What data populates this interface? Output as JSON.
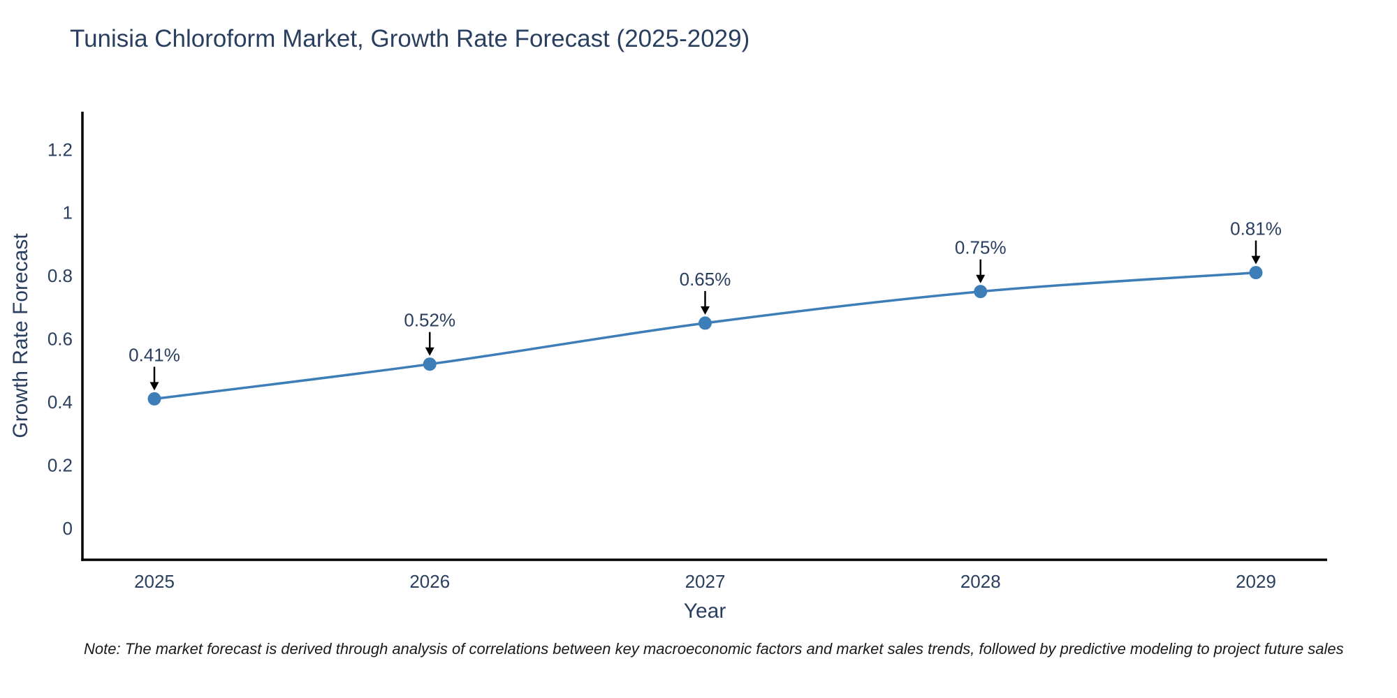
{
  "page": {
    "note": "Note: The market forecast is derived through analysis of correlations between key macroeconomic factors and market sales trends, followed by predictive modeling to project future sales",
    "colors": {
      "title_text": "#2a3f5f",
      "tick_text": "#2a3f5f",
      "annotation_text": "#2a3f5f",
      "axis_line": "#000000",
      "series": "#3d7db8",
      "arrow": "#000000",
      "note_text": "#1a1a1a",
      "background": "#ffffff"
    }
  },
  "chart_data": {
    "type": "line",
    "title": "Tunisia Chloroform Market, Growth Rate Forecast (2025-2029)",
    "xlabel": "Year",
    "ylabel": "Growth Rate Forecast",
    "categories": [
      "2025",
      "2026",
      "2027",
      "2028",
      "2029"
    ],
    "series": [
      {
        "name": "Growth Rate Forecast",
        "values": [
          0.41,
          0.52,
          0.65,
          0.75,
          0.81
        ],
        "point_labels": [
          "0.41%",
          "0.52%",
          "0.65%",
          "0.75%",
          "0.81%"
        ]
      }
    ],
    "yticks": [
      "0",
      "0.2",
      "0.4",
      "0.6",
      "0.8",
      "1",
      "1.2"
    ],
    "ytick_values": [
      0,
      0.2,
      0.4,
      0.6,
      0.8,
      1,
      1.2
    ],
    "ylim": [
      -0.1,
      1.32
    ],
    "grid": false,
    "legend_position": "none",
    "line_shape": "spline",
    "marker": "circle"
  }
}
